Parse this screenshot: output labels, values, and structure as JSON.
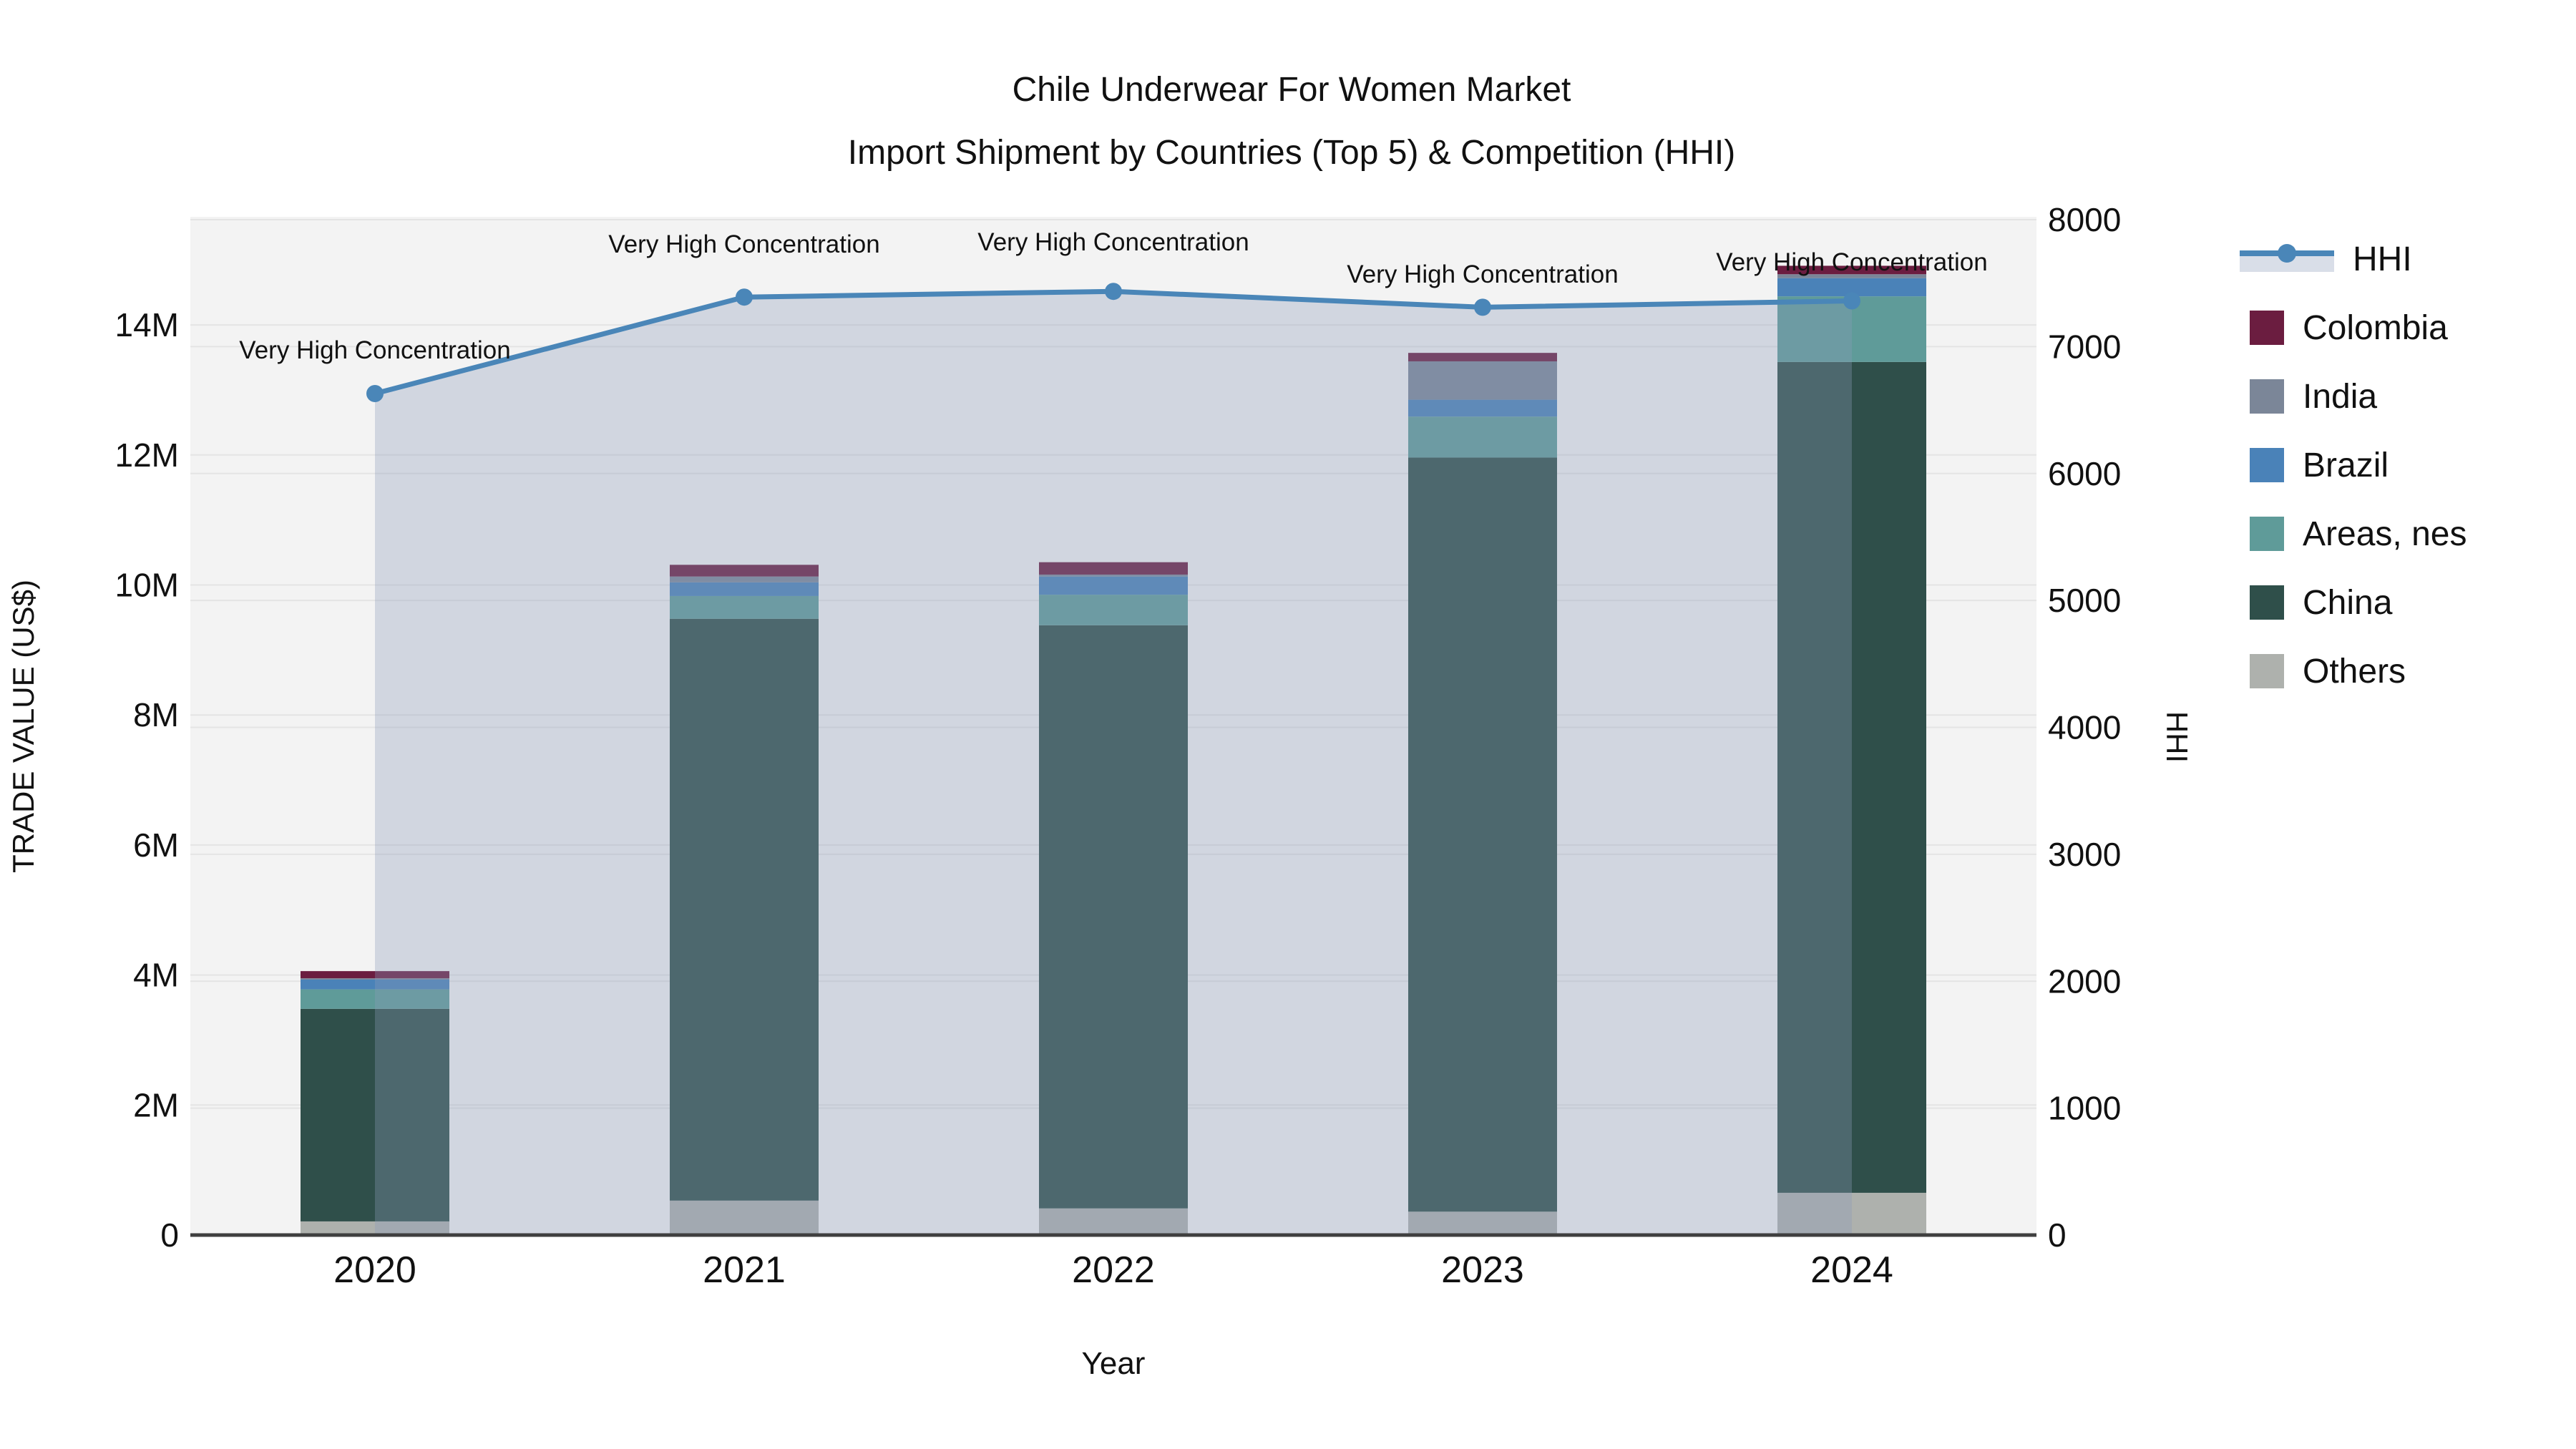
{
  "title": {
    "line1": "Chile Underwear For Women Market",
    "line2": "Import Shipment by Countries (Top 5) & Competition (HHI)"
  },
  "axes": {
    "x_title": "Year",
    "y_left_title": "TRADE VALUE (US$)",
    "y_right_title": "HHI",
    "x_tick_labels": [
      "2020",
      "2021",
      "2022",
      "2023",
      "2024"
    ],
    "y_left_tick_labels": [
      "0",
      "2M",
      "4M",
      "6M",
      "8M",
      "10M",
      "12M",
      "14M"
    ],
    "y_left_tick_values_musd": [
      0,
      2,
      4,
      6,
      8,
      10,
      12,
      14
    ],
    "y_right_tick_labels": [
      "0",
      "1000",
      "2000",
      "3000",
      "4000",
      "5000",
      "6000",
      "7000",
      "8000"
    ],
    "y_right_tick_values": [
      0,
      1000,
      2000,
      3000,
      4000,
      5000,
      6000,
      7000,
      8000
    ]
  },
  "chart_data": {
    "type": "bar",
    "subtype": "stacked bars (trade value, left axis) + line (HHI, right axis)",
    "categories": [
      "2020",
      "2021",
      "2022",
      "2023",
      "2024"
    ],
    "bar_value_unit": "million US$",
    "series": [
      {
        "name": "Others",
        "color": "#aeb1ad",
        "values_musd": [
          0.21,
          0.53,
          0.41,
          0.36,
          0.65
        ]
      },
      {
        "name": "China",
        "color": "#2f4f4a",
        "values_musd": [
          3.27,
          8.95,
          8.97,
          11.6,
          12.78
        ]
      },
      {
        "name": "Areas, nes",
        "color": "#5f9b99",
        "values_musd": [
          0.3,
          0.35,
          0.47,
          0.63,
          1.01
        ]
      },
      {
        "name": "Brazil",
        "color": "#4a82b8",
        "values_musd": [
          0.15,
          0.21,
          0.28,
          0.26,
          0.28
        ]
      },
      {
        "name": "India",
        "color": "#7b8698",
        "values_musd": [
          0.02,
          0.09,
          0.03,
          0.59,
          0.06
        ]
      },
      {
        "name": "Colombia",
        "color": "#6b1d40",
        "values_musd": [
          0.11,
          0.18,
          0.19,
          0.13,
          0.13
        ]
      }
    ],
    "bar_totals_musd": [
      4.06,
      10.31,
      10.35,
      13.57,
      14.91
    ],
    "line_series": {
      "name": "HHI",
      "color": "#4a86b8",
      "area_fill": "rgba(140,155,185,0.33)",
      "values": [
        6630,
        7390,
        7435,
        7310,
        7360
      ]
    },
    "annotations": [
      {
        "category": "2020",
        "text": "Very High Concentration"
      },
      {
        "category": "2021",
        "text": "Very High Concentration"
      },
      {
        "category": "2022",
        "text": "Very High Concentration"
      },
      {
        "category": "2023",
        "text": "Very High Concentration"
      },
      {
        "category": "2024",
        "text": "Very High Concentration"
      }
    ],
    "ylim_left_musd": [
      0,
      15.66
    ],
    "ylim_right": [
      0,
      8000
    ],
    "grid": true,
    "legend_position": "right"
  },
  "legend": {
    "items": [
      {
        "label": "HHI",
        "type": "line",
        "color": "#4a86b8"
      },
      {
        "label": "Colombia",
        "type": "square",
        "color": "#6b1d40"
      },
      {
        "label": "India",
        "type": "square",
        "color": "#7b8698"
      },
      {
        "label": "Brazil",
        "type": "square",
        "color": "#4a82b8"
      },
      {
        "label": "Areas, nes",
        "type": "square",
        "color": "#5f9b99"
      },
      {
        "label": "China",
        "type": "square",
        "color": "#2f4f4a"
      },
      {
        "label": "Others",
        "type": "square",
        "color": "#aeb1ad"
      }
    ]
  },
  "colors": {
    "plot_background": "#f3f3f3",
    "gridline": "#e4e4e4",
    "axis_line": "#3f3f3f",
    "text": "#111111"
  }
}
